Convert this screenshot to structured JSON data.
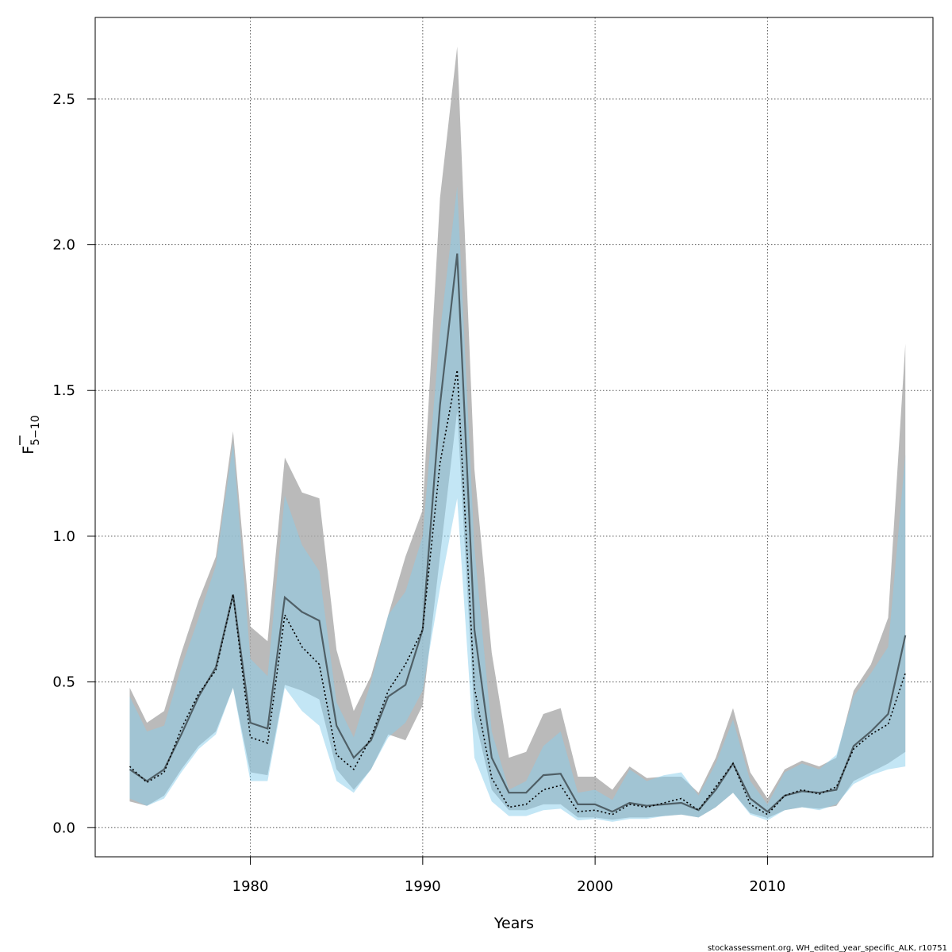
{
  "chart_data": {
    "type": "area",
    "xlabel": "Years",
    "ylabel_main": "F",
    "ylabel_sub": "5−10",
    "footnote": "stockassessment.org, WH_edited_year_specific_ALK, r10751",
    "xlim": [
      1971,
      2019.6
    ],
    "ylim": [
      -0.1,
      2.78
    ],
    "x_ticks": [
      1980,
      1990,
      2000,
      2010
    ],
    "y_ticks": [
      0.0,
      0.5,
      1.0,
      1.5,
      2.0,
      2.5
    ],
    "y_tick_labels": [
      "0.0",
      "0.5",
      "1.0",
      "1.5",
      "2.0",
      "2.5"
    ],
    "grid": true,
    "colors": {
      "run1_band": "#a9a9a9",
      "run2_band": "#87CEEB",
      "run1_line": "#4f5f66",
      "run2_line": "#000000",
      "grid": "#555555"
    },
    "years": [
      1973,
      1974,
      1975,
      1976,
      1977,
      1978,
      1979,
      1980,
      1981,
      1982,
      1983,
      1984,
      1985,
      1986,
      1987,
      1988,
      1989,
      1990,
      1991,
      1992,
      1993,
      1994,
      1995,
      1996,
      1997,
      1998,
      1999,
      2000,
      2001,
      2002,
      2003,
      2004,
      2005,
      2006,
      2007,
      2008,
      2009,
      2010,
      2011,
      2012,
      2013,
      2014,
      2015,
      2016,
      2017,
      2018
    ],
    "series": [
      {
        "style": "solid",
        "values": [
          0.2,
          0.16,
          0.2,
          0.32,
          0.45,
          0.55,
          0.8,
          0.36,
          0.34,
          0.79,
          0.74,
          0.71,
          0.35,
          0.24,
          0.3,
          0.45,
          0.49,
          0.68,
          1.45,
          1.97,
          0.68,
          0.24,
          0.12,
          0.12,
          0.18,
          0.185,
          0.08,
          0.08,
          0.055,
          0.085,
          0.075,
          0.08,
          0.085,
          0.06,
          0.13,
          0.22,
          0.1,
          0.055,
          0.11,
          0.125,
          0.12,
          0.13,
          0.28,
          0.33,
          0.39,
          0.66
        ],
        "lower": [
          0.09,
          0.075,
          0.11,
          0.2,
          0.28,
          0.33,
          0.48,
          0.19,
          0.18,
          0.49,
          0.47,
          0.44,
          0.2,
          0.13,
          0.2,
          0.32,
          0.3,
          0.42,
          0.93,
          1.43,
          0.38,
          0.13,
          0.06,
          0.06,
          0.08,
          0.08,
          0.035,
          0.035,
          0.027,
          0.035,
          0.035,
          0.04,
          0.045,
          0.035,
          0.07,
          0.12,
          0.05,
          0.033,
          0.06,
          0.07,
          0.065,
          0.075,
          0.16,
          0.19,
          0.22,
          0.26
        ],
        "upper": [
          0.48,
          0.36,
          0.4,
          0.6,
          0.78,
          0.93,
          1.36,
          0.69,
          0.64,
          1.27,
          1.15,
          1.13,
          0.61,
          0.4,
          0.52,
          0.73,
          0.93,
          1.09,
          2.16,
          2.68,
          1.23,
          0.6,
          0.24,
          0.26,
          0.39,
          0.41,
          0.175,
          0.175,
          0.13,
          0.21,
          0.17,
          0.175,
          0.175,
          0.12,
          0.24,
          0.41,
          0.19,
          0.1,
          0.2,
          0.23,
          0.21,
          0.24,
          0.47,
          0.56,
          0.72,
          1.66
        ]
      },
      {
        "style": "dotted",
        "values": [
          0.21,
          0.155,
          0.19,
          0.34,
          0.46,
          0.54,
          0.8,
          0.31,
          0.29,
          0.73,
          0.62,
          0.56,
          0.25,
          0.2,
          0.31,
          0.47,
          0.56,
          0.68,
          1.25,
          1.57,
          0.48,
          0.17,
          0.07,
          0.08,
          0.13,
          0.145,
          0.055,
          0.06,
          0.045,
          0.08,
          0.07,
          0.085,
          0.1,
          0.06,
          0.14,
          0.22,
          0.08,
          0.045,
          0.11,
          0.13,
          0.115,
          0.14,
          0.27,
          0.32,
          0.355,
          0.53
        ],
        "lower": [
          0.1,
          0.075,
          0.1,
          0.19,
          0.27,
          0.32,
          0.48,
          0.16,
          0.16,
          0.48,
          0.4,
          0.35,
          0.16,
          0.12,
          0.2,
          0.31,
          0.36,
          0.47,
          0.82,
          1.13,
          0.24,
          0.09,
          0.04,
          0.04,
          0.06,
          0.065,
          0.025,
          0.03,
          0.02,
          0.03,
          0.03,
          0.04,
          0.045,
          0.035,
          0.07,
          0.12,
          0.045,
          0.025,
          0.06,
          0.07,
          0.06,
          0.08,
          0.15,
          0.18,
          0.2,
          0.21
        ],
        "upper": [
          0.45,
          0.33,
          0.35,
          0.55,
          0.72,
          0.9,
          1.32,
          0.58,
          0.52,
          1.14,
          0.97,
          0.88,
          0.43,
          0.31,
          0.5,
          0.73,
          0.81,
          1.0,
          1.7,
          2.2,
          0.96,
          0.33,
          0.13,
          0.16,
          0.28,
          0.33,
          0.12,
          0.13,
          0.095,
          0.2,
          0.16,
          0.18,
          0.19,
          0.11,
          0.22,
          0.37,
          0.16,
          0.08,
          0.19,
          0.22,
          0.2,
          0.25,
          0.45,
          0.53,
          0.62,
          1.28
        ]
      }
    ]
  }
}
